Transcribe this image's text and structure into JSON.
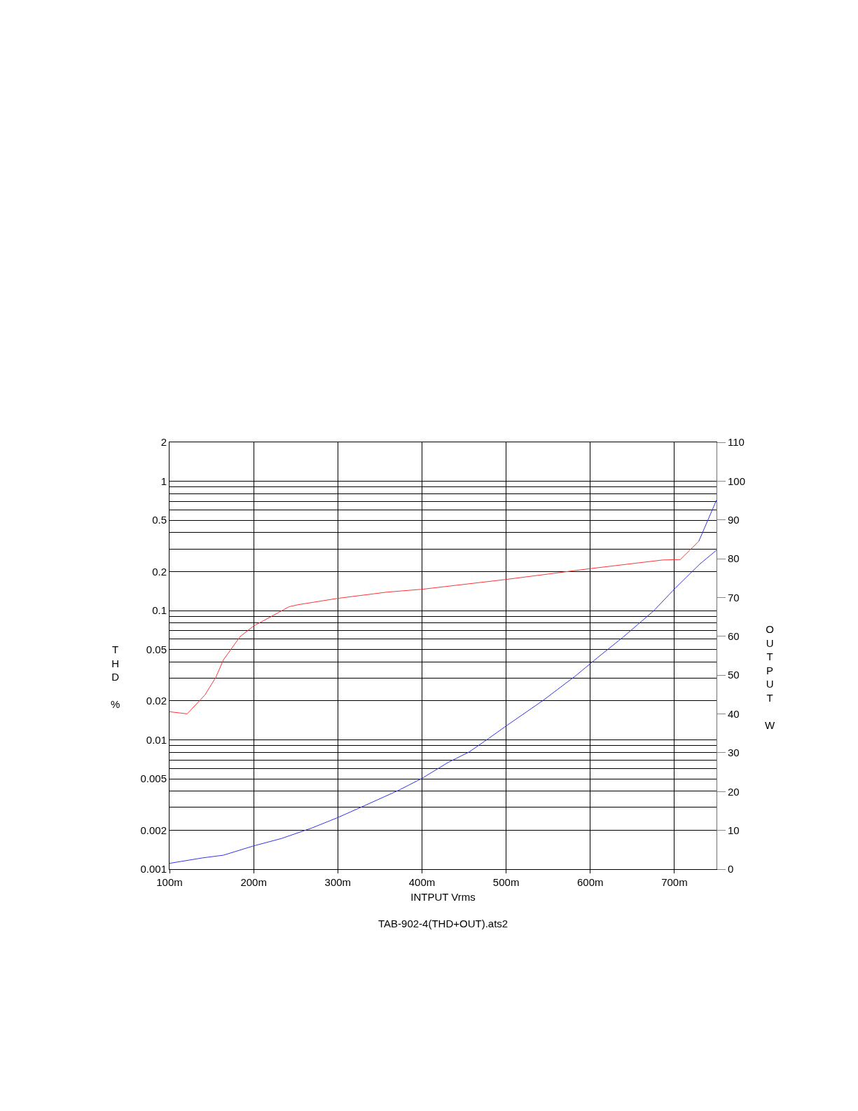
{
  "chart_data": {
    "type": "line",
    "xlabel": "INTPUT Vrms",
    "ylabel": "THD %",
    "y2label": "OUTPUT W",
    "annotations": [
      "TAB-902-4(THD+OUT).ats2"
    ],
    "series": [
      {
        "color": "#ff3333",
        "x": [
          100,
          121,
          142,
          155,
          164,
          184,
          200,
          221,
          242,
          253,
          299,
          359,
          400,
          500,
          600,
          686,
          707,
          729
        ],
        "values": [
          0.0165,
          0.0159,
          0.0222,
          0.0304,
          0.0415,
          0.063,
          0.076,
          0.09,
          0.107,
          0.111,
          0.124,
          0.139,
          0.146,
          0.174,
          0.211,
          0.246,
          0.248,
          0.344
        ]
      },
      {
        "color": "#3333ee",
        "x": [
          729,
          750
        ],
        "values": [
          0.344,
          0.716
        ]
      },
      {
        "color": "#3333ee",
        "axis": "y2",
        "x": [
          100,
          139,
          164,
          200,
          233,
          269,
          300,
          328,
          372,
          400,
          431,
          456,
          478,
          500,
          544,
          583,
          608,
          639,
          675,
          700,
          730,
          750
        ],
        "values": [
          1.5,
          2.9,
          3.6,
          6.0,
          7.9,
          10.6,
          13.3,
          16.0,
          20.3,
          23.4,
          27.5,
          30.2,
          33.5,
          36.9,
          43.5,
          49.9,
          54.4,
          59.8,
          66.5,
          72.2,
          78.6,
          82.2
        ]
      }
    ],
    "log": "y",
    "grid": true,
    "marker": "none",
    "line_style": "solid",
    "xlim": [
      100,
      750
    ],
    "xticks": [
      {
        "value": 100,
        "label": "100m"
      },
      {
        "value": 200,
        "label": "200m"
      },
      {
        "value": 300,
        "label": "300m"
      },
      {
        "value": 400,
        "label": "400m"
      },
      {
        "value": 500,
        "label": "500m"
      },
      {
        "value": 600,
        "label": "600m"
      },
      {
        "value": 700,
        "label": "700m"
      }
    ],
    "ylim": [
      0.001,
      2
    ],
    "yticks": [
      0.001,
      0.002,
      {
        "value": 0.003,
        "label": null
      },
      {
        "value": 0.004,
        "label": null
      },
      0.005,
      {
        "value": 0.006,
        "label": null
      },
      {
        "value": 0.007,
        "label": null
      },
      {
        "value": 0.008,
        "label": null
      },
      {
        "value": 0.009,
        "label": null
      },
      0.01,
      0.02,
      {
        "value": 0.03,
        "label": null
      },
      {
        "value": 0.04,
        "label": null
      },
      0.05,
      {
        "value": 0.06,
        "label": null
      },
      {
        "value": 0.07,
        "label": null
      },
      {
        "value": 0.08,
        "label": null
      },
      {
        "value": 0.09,
        "label": null
      },
      0.1,
      0.2,
      {
        "value": 0.3,
        "label": null
      },
      {
        "value": 0.4,
        "label": null
      },
      0.5,
      {
        "value": 0.6,
        "label": null
      },
      {
        "value": 0.7,
        "label": null
      },
      {
        "value": 0.8,
        "label": null
      },
      {
        "value": 0.9,
        "label": null
      },
      1,
      2
    ],
    "y2lim": [
      0,
      110
    ],
    "y2ticks": [
      0,
      10,
      20,
      30,
      40,
      50,
      60,
      70,
      80,
      90,
      100,
      110
    ]
  }
}
